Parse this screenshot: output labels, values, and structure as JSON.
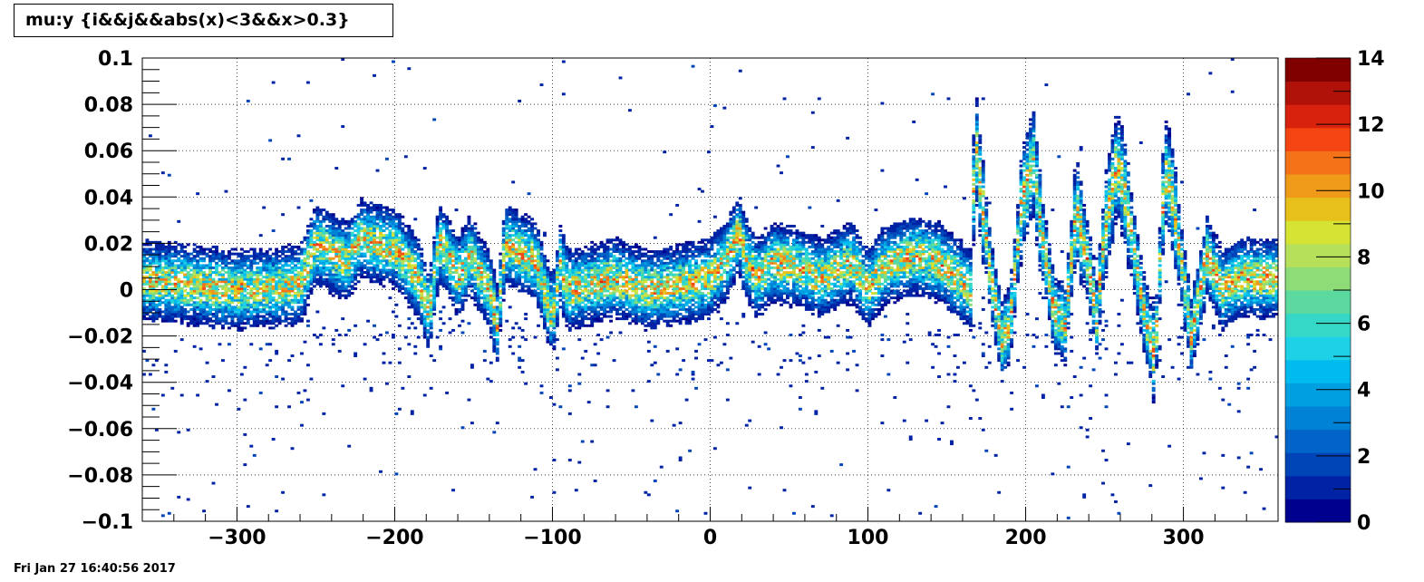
{
  "title": "mu:y {i&&j&&abs(x)<3&&x>0.3}",
  "timestamp": "Fri Jan 27 16:40:56 2017",
  "chart_data": {
    "type": "heatmap",
    "title": "mu:y {i&&j&&abs(x)<3&&x>0.3}",
    "xlabel": "",
    "ylabel": "",
    "xlim": [
      -360,
      360
    ],
    "ylim": [
      -0.1,
      0.1
    ],
    "x_ticks": [
      {
        "value": -300,
        "label": "−300"
      },
      {
        "value": -200,
        "label": "−200"
      },
      {
        "value": -100,
        "label": "−100"
      },
      {
        "value": 0,
        "label": "0"
      },
      {
        "value": 100,
        "label": "100"
      },
      {
        "value": 200,
        "label": "200"
      },
      {
        "value": 300,
        "label": "300"
      }
    ],
    "y_ticks": [
      {
        "value": 0.1,
        "label": "0.1"
      },
      {
        "value": 0.08,
        "label": "0.08"
      },
      {
        "value": 0.06,
        "label": "0.06"
      },
      {
        "value": 0.04,
        "label": "0.04"
      },
      {
        "value": 0.02,
        "label": "0.02"
      },
      {
        "value": 0,
        "label": "0"
      },
      {
        "value": -0.02,
        "label": "−0.02"
      },
      {
        "value": -0.04,
        "label": "−0.04"
      },
      {
        "value": -0.06,
        "label": "−0.06"
      },
      {
        "value": -0.08,
        "label": "−0.08"
      },
      {
        "value": -0.1,
        "label": "−0.1"
      }
    ],
    "z_range": [
      0,
      14
    ],
    "z_ticks": [
      {
        "value": 0,
        "label": "0"
      },
      {
        "value": 2,
        "label": "2"
      },
      {
        "value": 4,
        "label": "4"
      },
      {
        "value": 6,
        "label": "6"
      },
      {
        "value": 8,
        "label": "8"
      },
      {
        "value": 10,
        "label": "10"
      },
      {
        "value": 12,
        "label": "12"
      },
      {
        "value": 14,
        "label": "14"
      }
    ],
    "grid": true,
    "colormap": [
      "#00008f",
      "#0022a5",
      "#0045b8",
      "#0064c8",
      "#0082d6",
      "#009fe2",
      "#00bbed",
      "#1fd1e6",
      "#35d8c6",
      "#5cd99e",
      "#8ddc78",
      "#b6e05a",
      "#d4e334",
      "#e8c01c",
      "#ef9a18",
      "#f47218",
      "#f44412",
      "#d8220e",
      "#b0120a",
      "#800000"
    ],
    "ridge_profile": {
      "x": [
        -360,
        -340,
        -300,
        -260,
        -250,
        -230,
        -222,
        -200,
        -185,
        -178,
        -172,
        -166,
        -160,
        -152,
        -140,
        -135,
        -130,
        -110,
        -100,
        -95,
        -90,
        -60,
        -40,
        -20,
        0,
        10,
        18,
        22,
        30,
        40,
        55,
        70,
        90,
        100,
        110,
        130,
        145,
        165,
        168,
        172,
        178,
        185,
        190,
        198,
        205,
        210,
        218,
        225,
        232,
        240,
        245,
        250,
        258,
        262,
        268,
        275,
        282,
        288,
        292,
        298,
        305,
        315,
        325,
        335,
        360
      ],
      "y": [
        0.004,
        0.003,
        0.0,
        0.002,
        0.02,
        0.012,
        0.022,
        0.018,
        0.005,
        -0.01,
        0.02,
        0.015,
        0.005,
        0.015,
        0.0,
        -0.015,
        0.02,
        0.012,
        -0.012,
        0.01,
        0.0,
        0.005,
        0.0,
        0.002,
        0.005,
        0.012,
        0.025,
        0.015,
        0.005,
        0.012,
        0.01,
        0.005,
        0.012,
        0.0,
        0.01,
        0.015,
        0.012,
        0.0,
        0.065,
        0.04,
        0.005,
        -0.022,
        -0.015,
        0.04,
        0.055,
        0.025,
        -0.01,
        -0.015,
        0.035,
        0.01,
        -0.012,
        0.025,
        0.055,
        0.045,
        0.02,
        -0.01,
        -0.03,
        0.05,
        0.045,
        0.015,
        -0.02,
        0.015,
        0.0,
        0.005,
        0.005
      ]
    }
  }
}
